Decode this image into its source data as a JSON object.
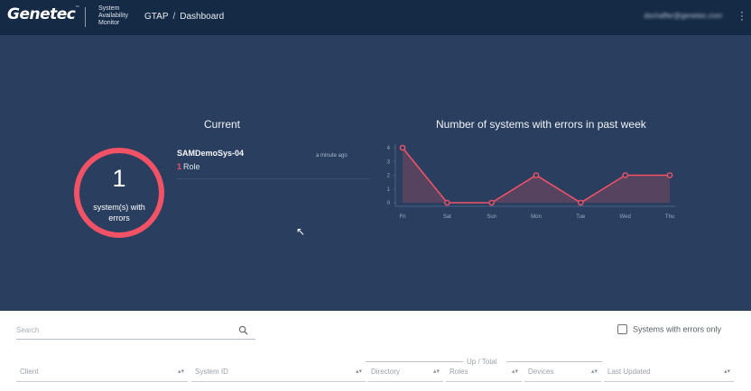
{
  "header": {
    "logo_text": "Genetec",
    "logo_tm": "™",
    "product_line1": "System",
    "product_line2": "Availability",
    "product_line3": "Monitor",
    "breadcrumb_root": "GTAP",
    "breadcrumb_sep": "/",
    "breadcrumb_current": "Dashboard",
    "user_email": "dschaffer@genetec.com"
  },
  "current": {
    "title": "Current",
    "error_count": "1",
    "error_label": "system(s) with errors",
    "accent_color": "#f25266",
    "system": {
      "name": "SAMDemoSys-04",
      "time": "a minute ago",
      "role_count": "1",
      "role_label": "Role"
    }
  },
  "chart_data": {
    "type": "area",
    "title": "Number of systems with errors in past week",
    "categories": [
      "Fri",
      "Sat",
      "Sun",
      "Mon",
      "Tue",
      "Wed",
      "Thu"
    ],
    "series": [
      {
        "values": [
          4,
          0,
          0,
          2,
          0,
          2,
          2
        ]
      }
    ],
    "ylim": [
      0,
      4
    ],
    "yticks": [
      "0",
      "1",
      "2",
      "3",
      "4"
    ],
    "color": "#f25266",
    "grid": false
  },
  "table": {
    "search_placeholder": "Search",
    "filter_label": "Systems with errors only",
    "group_label": "Up / Total",
    "columns": [
      "Client",
      "System ID",
      "Directory",
      "Roles",
      "Devices",
      "Last Updated"
    ]
  }
}
